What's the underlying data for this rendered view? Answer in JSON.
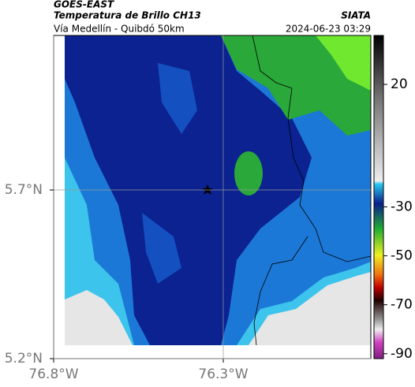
{
  "header": {
    "satellite": "GOES-EAST",
    "product": "Temperatura de Brillo CH13",
    "source": "SIATA",
    "region": "Vía Medellín - Quibdó 50km",
    "datetime": "2024-06-23 03:29"
  },
  "map": {
    "lon_lim": [
      -76.8,
      -75.865
    ],
    "lat_lim": [
      5.2,
      6.158
    ],
    "lon_ticks": [
      {
        "value": -76.8,
        "label": "76.8°W"
      },
      {
        "value": -76.3,
        "label": "76.3°W"
      }
    ],
    "lat_ticks": [
      {
        "value": 5.2,
        "label": "5.2°N"
      },
      {
        "value": 5.7,
        "label": "5.7°N"
      }
    ]
  },
  "colorbar": {
    "lim": [
      -92,
      40
    ],
    "ticks": [
      20,
      -30,
      -50,
      -70,
      -90
    ]
  }
}
